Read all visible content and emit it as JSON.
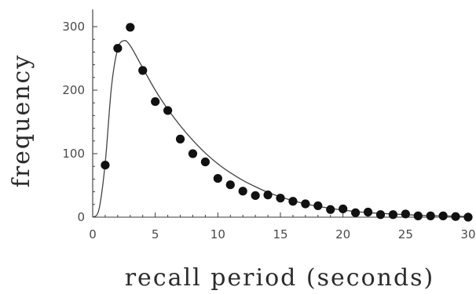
{
  "chart_data": {
    "type": "scatter",
    "xlabel": "recall period (seconds)",
    "ylabel": "frequency",
    "xlim": [
      0,
      30
    ],
    "ylim": [
      0,
      320
    ],
    "x_ticks": [
      "0",
      "5",
      "10",
      "15",
      "20",
      "25",
      "30"
    ],
    "y_ticks": [
      "0",
      "100",
      "200",
      "300"
    ],
    "grid": false,
    "legend": "none",
    "point_color": "#111111",
    "line_color": "#444444",
    "series": [
      {
        "type": "scatter",
        "x": [
          1,
          2,
          3,
          4,
          5,
          6,
          7,
          8,
          9,
          10,
          11,
          12,
          13,
          14,
          15,
          16,
          17,
          18,
          19,
          20,
          21,
          22,
          23,
          24,
          25,
          26,
          27,
          28,
          29,
          30
        ],
        "y": [
          82,
          266,
          299,
          231,
          182,
          168,
          123,
          100,
          87,
          61,
          51,
          41,
          34,
          35,
          30,
          25,
          21,
          18,
          12,
          13,
          7,
          8,
          4,
          4,
          5,
          2,
          2,
          2,
          1,
          0
        ]
      },
      {
        "type": "line",
        "x": [
          0,
          0.5,
          1,
          1.5,
          2,
          2.5,
          3,
          4,
          5,
          6,
          7,
          8,
          9,
          10,
          11,
          12,
          13,
          14,
          15,
          16,
          17,
          18,
          19,
          20,
          21,
          22,
          23,
          24,
          25,
          26,
          27,
          28,
          29,
          30
        ],
        "y": [
          0,
          12,
          85,
          205,
          265,
          278,
          270,
          235,
          200,
          170,
          144,
          121,
          101,
          84,
          70,
          58,
          48,
          39,
          32,
          26,
          21,
          17,
          14,
          11,
          9,
          7,
          6,
          5,
          4,
          3,
          2.5,
          2,
          1.5,
          1
        ]
      }
    ]
  }
}
